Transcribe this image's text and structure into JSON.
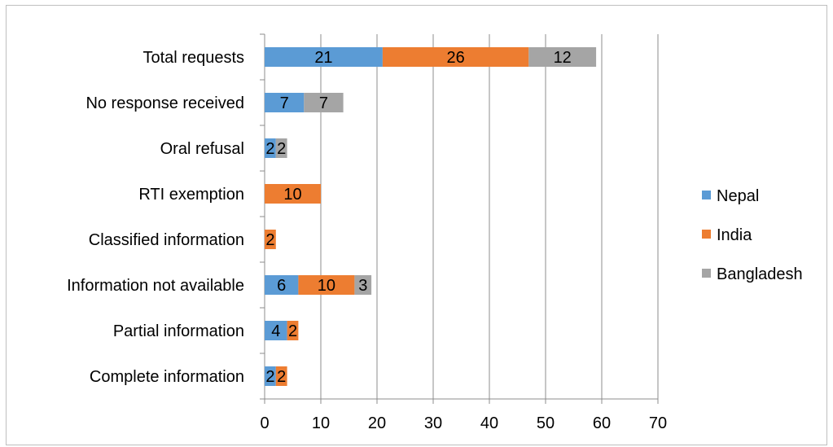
{
  "chart_data": {
    "type": "bar",
    "orientation": "horizontal",
    "stacked": true,
    "title": "",
    "xlabel": "",
    "ylabel": "",
    "categories": [
      "Total requests",
      "No response received",
      "Oral refusal",
      "RTI exemption",
      "Classified information",
      "Information not available",
      "Partial information",
      "Complete information"
    ],
    "series": [
      {
        "name": "Nepal",
        "color": "#5b9bd5",
        "values": [
          21,
          7,
          2,
          0,
          0,
          6,
          4,
          2
        ]
      },
      {
        "name": "India",
        "color": "#ed7d31",
        "values": [
          26,
          0,
          0,
          10,
          2,
          10,
          2,
          2
        ]
      },
      {
        "name": "Bangladesh",
        "color": "#a5a5a5",
        "values": [
          12,
          7,
          2,
          0,
          0,
          3,
          0,
          0
        ]
      }
    ],
    "xlim": [
      0,
      70
    ],
    "xticks": [
      0,
      10,
      20,
      30,
      40,
      50,
      60,
      70
    ],
    "grid": true,
    "legend_position": "right"
  }
}
